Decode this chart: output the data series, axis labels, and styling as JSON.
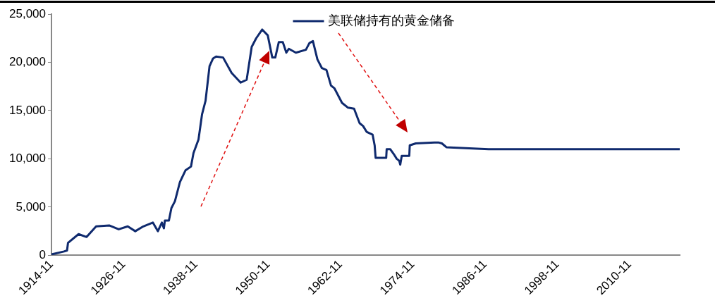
{
  "chart_data": {
    "type": "line",
    "legend": "top",
    "series": [
      {
        "name": "美联储持有的黄金储备",
        "color": "#0f2a6e",
        "x": [
          "1914-11",
          "1916-12",
          "1917-06",
          "1917-08",
          "1919-05",
          "1920-09",
          "1922-04",
          "1924-06",
          "1926-01",
          "1927-07",
          "1928-10",
          "1930-02",
          "1931-09",
          "1932-07",
          "1933-03",
          "1933-07",
          "1933-09",
          "1934-05",
          "1934-10",
          "1935-05",
          "1936-03",
          "1937-02",
          "1938-01",
          "1938-06",
          "1939-04",
          "1939-11",
          "1940-06",
          "1941-02",
          "1941-09",
          "1942-03",
          "1943-05",
          "1944-10",
          "1946-04",
          "1947-04",
          "1948-02",
          "1948-11",
          "1949-11",
          "1950-10",
          "1951-07",
          "1952-01",
          "1952-08",
          "1953-04",
          "1953-11",
          "1954-04",
          "1955-06",
          "1957-02",
          "1957-09",
          "1958-04",
          "1959-01",
          "1959-10",
          "1960-07",
          "1961-04",
          "1961-11",
          "1963-02",
          "1964-02",
          "1965-02",
          "1966-01",
          "1966-08",
          "1967-03",
          "1968-03",
          "1968-07",
          "1968-09",
          "1970-06",
          "1970-07",
          "1971-02",
          "1971-09",
          "1972-03",
          "1972-08",
          "1972-10",
          "1973-01",
          "1974-04",
          "1974-05",
          "1975-05",
          "1978-06",
          "1979-02",
          "1979-09",
          "1980-06",
          "1987-06",
          "2019-03"
        ],
        "values": [
          100,
          400,
          500,
          1300,
          2200,
          1900,
          3000,
          3100,
          2700,
          3000,
          2500,
          3000,
          3400,
          2500,
          3400,
          2800,
          3600,
          3600,
          4900,
          5600,
          7600,
          8800,
          9200,
          10600,
          12000,
          14600,
          16000,
          19600,
          20400,
          20600,
          20500,
          18900,
          17900,
          18200,
          21600,
          22500,
          23400,
          22800,
          20500,
          20500,
          22100,
          22100,
          21000,
          21400,
          21000,
          21300,
          22000,
          22200,
          20300,
          19400,
          19200,
          17600,
          17300,
          15800,
          15300,
          15200,
          13700,
          13400,
          12800,
          12500,
          11400,
          10100,
          10100,
          11000,
          11000,
          10500,
          10000,
          9800,
          9400,
          10300,
          10300,
          11400,
          11600,
          11700,
          11700,
          11600,
          11200,
          11000,
          11000
        ]
      }
    ],
    "xlim": [
      "1914-11",
      "2019-03"
    ],
    "xticks": [
      "1914-11",
      "1926-11",
      "1938-11",
      "1950-11",
      "1962-11",
      "1974-11",
      "1986-11",
      "1998-11",
      "2010-11"
    ],
    "ylim": [
      0,
      25000
    ],
    "yticks": [
      0,
      {
        "value": 5000,
        "label": "5,000"
      },
      {
        "value": 10000,
        "label": "10,000"
      },
      {
        "value": 15000,
        "label": "15,000"
      },
      {
        "value": 20000,
        "label": "20,000"
      },
      {
        "value": 25000,
        "label": "25,000"
      }
    ],
    "grid": false,
    "marker": "none",
    "line_style": "solid"
  }
}
